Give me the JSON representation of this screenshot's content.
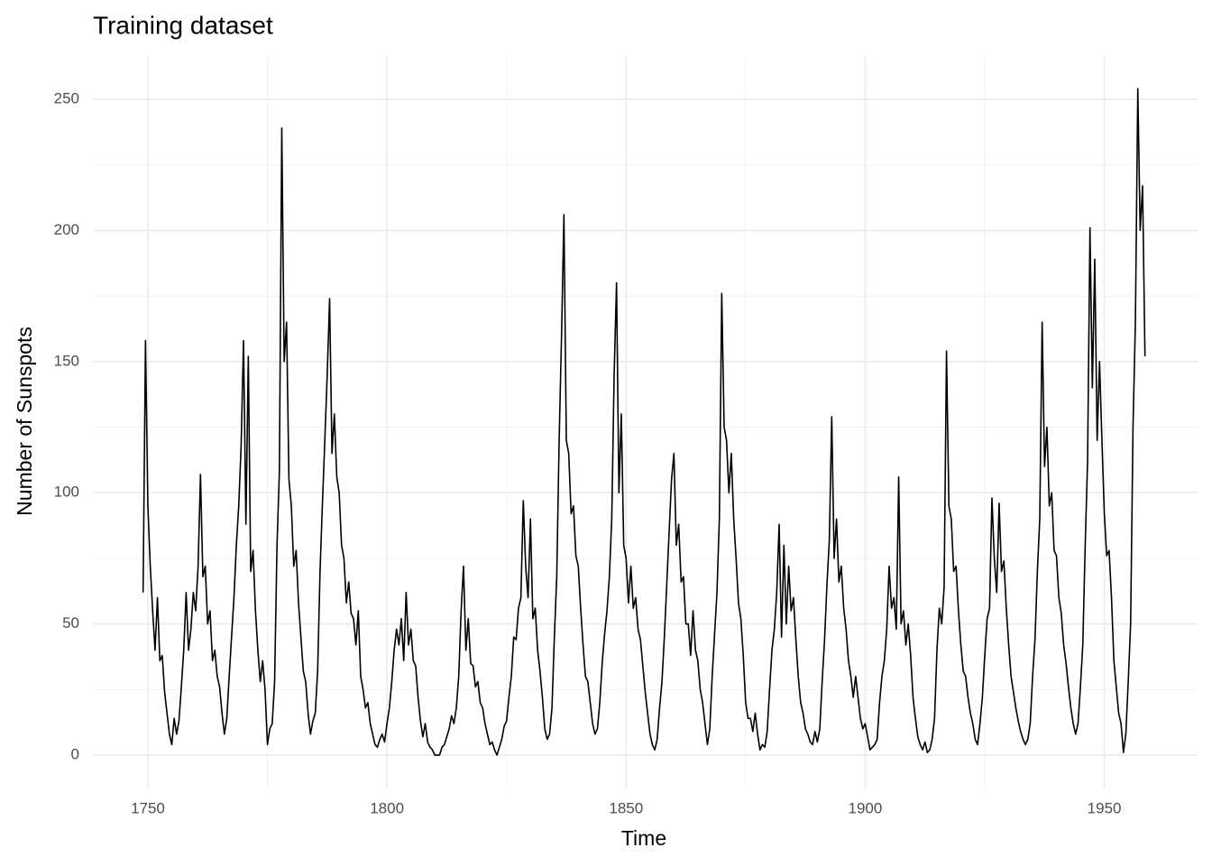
{
  "chart_data": {
    "type": "line",
    "title": "Training dataset",
    "x_label": "Time",
    "y_label": "Number of Sunspots",
    "color": "#000000",
    "grid": true,
    "xlim": [
      1738.5,
      1969.5
    ],
    "ylim": [
      -12.7,
      266.5
    ],
    "xticks": [
      1750,
      1800,
      1850,
      1900,
      1950
    ],
    "yticks": [
      0,
      50,
      100,
      150,
      200,
      250
    ],
    "minor_xticks": [
      1775,
      1825,
      1875,
      1925
    ],
    "minor_yticks": [
      25,
      75,
      125,
      175,
      225
    ],
    "x": [
      1749,
      1749.5,
      1750,
      1750.5,
      1751,
      1751.5,
      1752,
      1752.5,
      1753,
      1753.5,
      1754,
      1754.5,
      1755,
      1755.5,
      1756,
      1756.5,
      1757,
      1757.5,
      1758,
      1758.5,
      1759,
      1759.5,
      1760,
      1760.5,
      1761,
      1761.5,
      1762,
      1762.5,
      1763,
      1763.5,
      1764,
      1764.5,
      1765,
      1765.5,
      1766,
      1766.5,
      1767,
      1767.5,
      1768,
      1768.5,
      1769,
      1769.5,
      1770,
      1770.5,
      1771,
      1771.5,
      1772,
      1772.5,
      1773,
      1773.5,
      1774,
      1774.5,
      1775,
      1775.5,
      1776,
      1776.5,
      1777,
      1777.5,
      1778,
      1778.5,
      1779,
      1779.5,
      1780,
      1780.5,
      1781,
      1781.5,
      1782,
      1782.5,
      1783,
      1783.5,
      1784,
      1784.5,
      1785,
      1785.5,
      1786,
      1786.5,
      1787,
      1787.5,
      1788,
      1788.5,
      1789,
      1789.5,
      1790,
      1790.5,
      1791,
      1791.5,
      1792,
      1792.5,
      1793,
      1793.5,
      1794,
      1794.5,
      1795,
      1795.5,
      1796,
      1796.5,
      1797,
      1797.5,
      1798,
      1798.5,
      1799,
      1799.5,
      1800,
      1800.5,
      1801,
      1801.5,
      1802,
      1802.5,
      1803,
      1803.5,
      1804,
      1804.5,
      1805,
      1805.5,
      1806,
      1806.5,
      1807,
      1807.5,
      1808,
      1808.5,
      1809,
      1809.5,
      1810,
      1810.5,
      1811,
      1811.5,
      1812,
      1812.5,
      1813,
      1813.5,
      1814,
      1814.5,
      1815,
      1815.5,
      1816,
      1816.5,
      1817,
      1817.5,
      1818,
      1818.5,
      1819,
      1819.5,
      1820,
      1820.5,
      1821,
      1821.5,
      1822,
      1822.5,
      1823,
      1823.5,
      1824,
      1824.5,
      1825,
      1825.5,
      1826,
      1826.5,
      1827,
      1827.5,
      1828,
      1828.5,
      1829,
      1829.5,
      1830,
      1830.5,
      1831,
      1831.5,
      1832,
      1832.5,
      1833,
      1833.5,
      1834,
      1834.5,
      1835,
      1835.5,
      1836,
      1836.5,
      1837,
      1837.5,
      1838,
      1838.5,
      1839,
      1839.5,
      1840,
      1840.5,
      1841,
      1841.5,
      1842,
      1842.5,
      1843,
      1843.5,
      1844,
      1844.5,
      1845,
      1845.5,
      1846,
      1846.5,
      1847,
      1847.5,
      1848,
      1848.5,
      1849,
      1849.5,
      1850,
      1850.5,
      1851,
      1851.5,
      1852,
      1852.5,
      1853,
      1853.5,
      1854,
      1854.5,
      1855,
      1855.5,
      1856,
      1856.5,
      1857,
      1857.5,
      1858,
      1858.5,
      1859,
      1859.5,
      1860,
      1860.5,
      1861,
      1861.5,
      1862,
      1862.5,
      1863,
      1863.5,
      1864,
      1864.5,
      1865,
      1865.5,
      1866,
      1866.5,
      1867,
      1867.5,
      1868,
      1868.5,
      1869,
      1869.5,
      1870,
      1870.5,
      1871,
      1871.5,
      1872,
      1872.5,
      1873,
      1873.5,
      1874,
      1874.5,
      1875,
      1875.5,
      1876,
      1876.5,
      1877,
      1877.5,
      1878,
      1878.5,
      1879,
      1879.5,
      1880,
      1880.5,
      1881,
      1881.5,
      1882,
      1882.5,
      1883,
      1883.5,
      1884,
      1884.5,
      1885,
      1885.5,
      1886,
      1886.5,
      1887,
      1887.5,
      1888,
      1888.5,
      1889,
      1889.5,
      1890,
      1890.5,
      1891,
      1891.5,
      1892,
      1892.5,
      1893,
      1893.5,
      1894,
      1894.5,
      1895,
      1895.5,
      1896,
      1896.5,
      1897,
      1897.5,
      1898,
      1898.5,
      1899,
      1899.5,
      1900,
      1900.5,
      1901,
      1901.5,
      1902,
      1902.5,
      1903,
      1903.5,
      1904,
      1904.5,
      1905,
      1905.5,
      1906,
      1906.5,
      1907,
      1907.5,
      1908,
      1908.5,
      1909,
      1909.5,
      1910,
      1910.5,
      1911,
      1911.5,
      1912,
      1912.5,
      1913,
      1913.5,
      1914,
      1914.5,
      1915,
      1915.5,
      1916,
      1916.5,
      1917,
      1917.5,
      1918,
      1918.5,
      1919,
      1919.5,
      1920,
      1920.5,
      1921,
      1921.5,
      1922,
      1922.5,
      1923,
      1923.5,
      1924,
      1924.5,
      1925,
      1925.5,
      1926,
      1926.5,
      1927,
      1927.5,
      1928,
      1928.5,
      1929,
      1929.5,
      1930,
      1930.5,
      1931,
      1931.5,
      1932,
      1932.5,
      1933,
      1933.5,
      1934,
      1934.5,
      1935,
      1935.5,
      1936,
      1936.5,
      1937,
      1937.5,
      1938,
      1938.5,
      1939,
      1939.5,
      1940,
      1940.5,
      1941,
      1941.5,
      1942,
      1942.5,
      1943,
      1943.5,
      1944,
      1944.5,
      1945,
      1945.5,
      1946,
      1946.5,
      1947,
      1947.5,
      1948,
      1948.5,
      1949,
      1949.5,
      1950,
      1950.5,
      1951,
      1951.5,
      1952,
      1952.5,
      1953,
      1953.5,
      1954,
      1954.5,
      1955,
      1955.5,
      1956,
      1956.5,
      1957,
      1957.5,
      1958,
      1958.5
    ],
    "values": [
      62,
      158,
      95,
      72,
      55,
      40,
      60,
      36,
      38,
      24,
      16,
      8,
      4,
      14,
      8,
      13,
      26,
      40,
      62,
      40,
      48,
      62,
      55,
      72,
      107,
      68,
      72,
      50,
      55,
      36,
      40,
      30,
      26,
      16,
      8,
      14,
      30,
      45,
      60,
      80,
      95,
      118,
      158,
      88,
      152,
      70,
      78,
      55,
      40,
      28,
      36,
      25,
      4,
      10,
      12,
      28,
      80,
      108,
      239,
      150,
      165,
      105,
      95,
      72,
      78,
      58,
      45,
      32,
      28,
      16,
      8,
      13,
      16,
      32,
      70,
      96,
      120,
      145,
      174,
      115,
      130,
      106,
      100,
      80,
      75,
      58,
      66,
      54,
      52,
      42,
      55,
      30,
      25,
      18,
      20,
      12,
      8,
      4,
      3,
      6,
      8,
      5,
      12,
      18,
      28,
      40,
      48,
      42,
      52,
      36,
      62,
      42,
      48,
      36,
      34,
      22,
      13,
      7,
      12,
      5,
      3,
      2,
      0,
      0,
      0,
      3,
      4,
      7,
      10,
      15,
      12,
      18,
      30,
      55,
      72,
      40,
      52,
      35,
      34,
      26,
      28,
      20,
      18,
      12,
      8,
      4,
      5,
      2,
      0,
      3,
      6,
      11,
      13,
      22,
      30,
      45,
      44,
      56,
      60,
      97,
      72,
      60,
      90,
      52,
      56,
      40,
      32,
      22,
      10,
      6,
      8,
      18,
      45,
      68,
      120,
      160,
      206,
      120,
      115,
      92,
      95,
      76,
      72,
      56,
      42,
      30,
      28,
      20,
      12,
      8,
      10,
      20,
      35,
      46,
      55,
      68,
      90,
      145,
      180,
      100,
      130,
      80,
      75,
      58,
      72,
      56,
      60,
      48,
      44,
      34,
      24,
      16,
      8,
      4,
      2,
      6,
      18,
      28,
      45,
      65,
      85,
      105,
      115,
      80,
      88,
      66,
      68,
      50,
      50,
      38,
      55,
      40,
      36,
      25,
      20,
      12,
      4,
      10,
      30,
      46,
      62,
      90,
      176,
      125,
      120,
      100,
      115,
      90,
      75,
      58,
      52,
      38,
      20,
      14,
      14,
      9,
      16,
      8,
      2,
      4,
      3,
      9,
      25,
      40,
      48,
      62,
      88,
      45,
      80,
      50,
      72,
      55,
      60,
      44,
      30,
      20,
      16,
      10,
      8,
      5,
      4,
      9,
      5,
      10,
      28,
      44,
      65,
      82,
      129,
      75,
      90,
      66,
      72,
      56,
      48,
      36,
      30,
      22,
      30,
      22,
      14,
      10,
      12,
      7,
      2,
      3,
      4,
      6,
      20,
      30,
      36,
      48,
      72,
      56,
      60,
      48,
      106,
      50,
      55,
      42,
      50,
      38,
      22,
      14,
      7,
      4,
      2,
      5,
      1,
      2,
      6,
      14,
      40,
      56,
      50,
      64,
      154,
      95,
      90,
      70,
      72,
      55,
      42,
      32,
      30,
      22,
      16,
      12,
      6,
      4,
      12,
      22,
      38,
      52,
      56,
      98,
      75,
      62,
      96,
      70,
      74,
      56,
      42,
      30,
      24,
      18,
      13,
      9,
      6,
      4,
      6,
      12,
      30,
      44,
      70,
      90,
      165,
      110,
      125,
      95,
      100,
      78,
      76,
      60,
      54,
      42,
      35,
      26,
      18,
      12,
      8,
      12,
      26,
      42,
      80,
      112,
      201,
      140,
      189,
      120,
      150,
      120,
      92,
      76,
      78,
      60,
      36,
      26,
      16,
      12,
      1,
      8,
      28,
      50,
      125,
      165,
      254,
      200,
      217,
      152
    ]
  }
}
